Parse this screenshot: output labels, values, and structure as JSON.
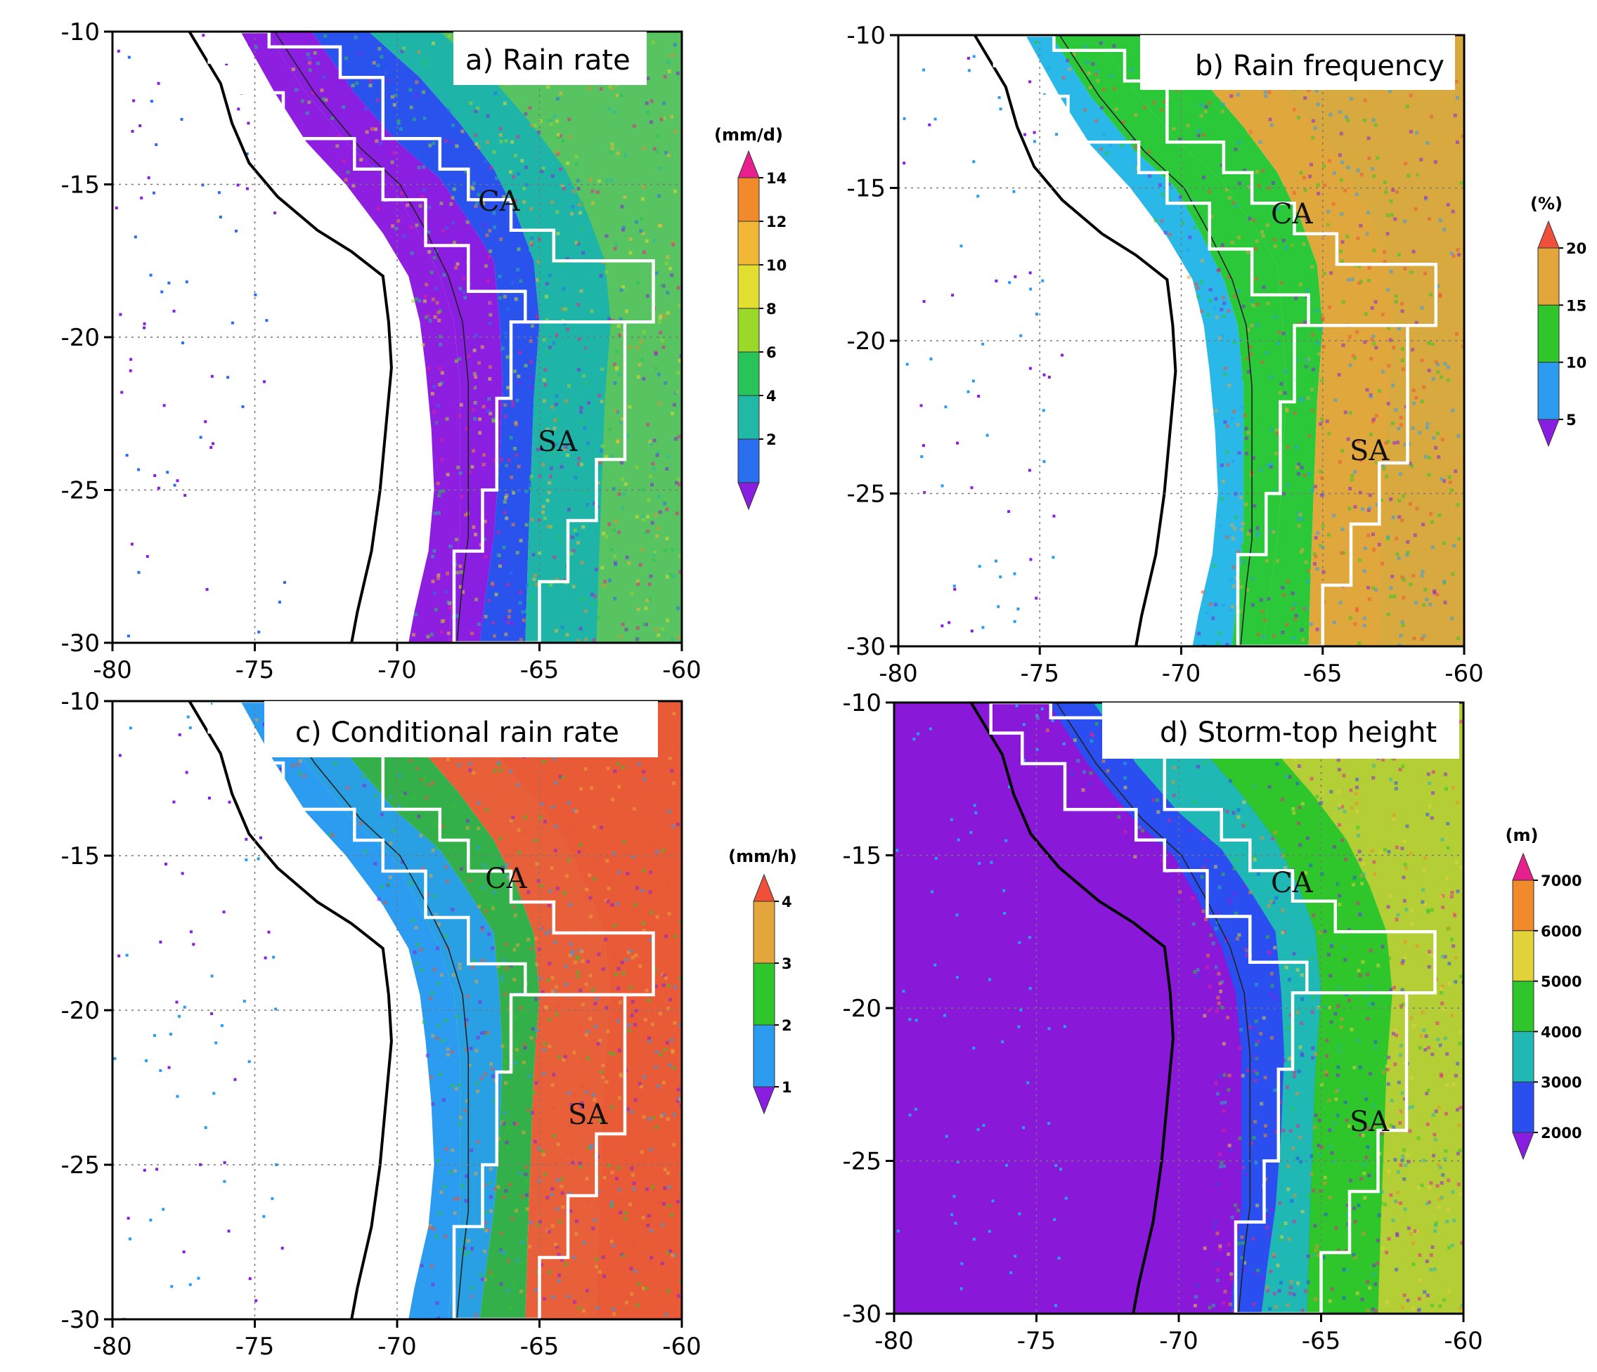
{
  "axes": {
    "lon_ticks": [
      -80,
      -75,
      -70,
      -65,
      -60
    ],
    "lat_ticks": [
      -10,
      -15,
      -20,
      -25,
      -30
    ],
    "lon_range": [
      -80,
      -60
    ],
    "lat_range": [
      -30,
      -10
    ]
  },
  "regions": [
    "CA",
    "SA"
  ],
  "panels": [
    {
      "id": "a",
      "title": "a) Rain rate",
      "unit": "(mm/d)",
      "cb_labels": [
        "14",
        "12",
        "10",
        "8",
        "6",
        "4",
        "2"
      ],
      "cb_colors": [
        "#e8208f",
        "#f08a2a",
        "#f2b835",
        "#e2de30",
        "#9ad82a",
        "#27c45a",
        "#1fb9a6",
        "#2a6ef0",
        "#8a1ee0"
      ],
      "field": {
        "ocean": "#ffffff",
        "dry": "#ffffff",
        "coast": "#8f1fe0",
        "slope": "#8a1fe2",
        "mid": "#2a52ec",
        "high": "#1fb4a8",
        "east": "#6cc84a"
      }
    },
    {
      "id": "b",
      "title": "b) Rain frequency",
      "unit": "(%)",
      "cb_labels": [
        "20",
        "15",
        "10",
        "5"
      ],
      "cb_colors": [
        "#f0503a",
        "#e3a63a",
        "#2ec62a",
        "#2c9cf0",
        "#8a1ee0"
      ],
      "field": {
        "ocean": "#ffffff",
        "dry": "#ffffff",
        "coast": "#2ab8e8",
        "slope": "#2bc83a",
        "mid": "#2bc83a",
        "high": "#e0a83c",
        "east": "#d6aa40"
      }
    },
    {
      "id": "c",
      "title": "c) Conditional rain rate",
      "unit": "(mm/h)",
      "cb_labels": [
        "4",
        "3",
        "2",
        "1"
      ],
      "cb_colors": [
        "#f0503a",
        "#e3a63a",
        "#2ec62a",
        "#2c9cf0",
        "#8a1ee0"
      ],
      "field": {
        "ocean": "#ffffff",
        "dry": "#ffffff",
        "coast": "#2c9cf0",
        "slope": "#2aa0e4",
        "mid": "#34b04a",
        "high": "#e8603a",
        "east": "#e85a36"
      }
    },
    {
      "id": "d",
      "title": "d) Storm-top height",
      "unit": "(m)",
      "cb_labels": [
        "7000",
        "6000",
        "5000",
        "4000",
        "3000",
        "2000"
      ],
      "cb_colors": [
        "#e8208f",
        "#f08a2a",
        "#e2d23a",
        "#2ec62a",
        "#20b8b4",
        "#2a4ef0",
        "#8a1ee0"
      ],
      "field": {
        "ocean": "#8a18d8",
        "dry": "#8a18d8",
        "coast": "#8a18d8",
        "slope": "#2a4ef0",
        "mid": "#20b8b4",
        "high": "#2ec62a",
        "east": "#e2d23a"
      }
    }
  ]
}
